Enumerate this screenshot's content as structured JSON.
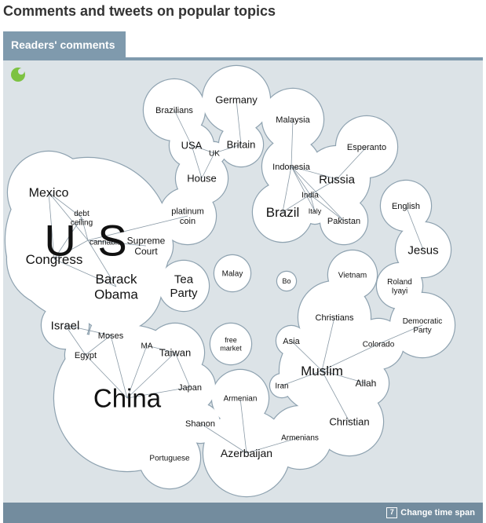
{
  "page": {
    "title": "Comments and tweets on popular topics"
  },
  "tabs": [
    {
      "label": "Readers' comments",
      "active": true
    }
  ],
  "footer": {
    "change_label": "Change time span",
    "calendar_glyph": "7"
  },
  "colors": {
    "accent": "#7f9aad",
    "panel": "#dce3e7",
    "footer": "#738c9e",
    "logo": "#7dc242",
    "bubble_stroke": "#8ea2b0"
  },
  "icons": {
    "logo": "green-dot-logo-icon",
    "calendar": "calendar-icon"
  },
  "terms": [
    {
      "id": "us",
      "label": "U S"
    },
    {
      "id": "mexico",
      "label": "Mexico"
    },
    {
      "id": "debt",
      "label": "debt ceiling"
    },
    {
      "id": "cannabis",
      "label": "cannabis"
    },
    {
      "id": "supreme",
      "label": "Supreme Court"
    },
    {
      "id": "congress",
      "label": "Congress"
    },
    {
      "id": "obama",
      "label": "Barack Obama"
    },
    {
      "id": "platinum",
      "label": "platinum coin"
    },
    {
      "id": "brazilians",
      "label": "Brazilians"
    },
    {
      "id": "germany",
      "label": "Germany"
    },
    {
      "id": "usa",
      "label": "USA"
    },
    {
      "id": "uk",
      "label": "UK"
    },
    {
      "id": "britain",
      "label": "Britain"
    },
    {
      "id": "house",
      "label": "House"
    },
    {
      "id": "malaysia",
      "label": "Malaysia"
    },
    {
      "id": "esperanto",
      "label": "Esperanto"
    },
    {
      "id": "indonesia",
      "label": "Indonesia"
    },
    {
      "id": "russia",
      "label": "Russia"
    },
    {
      "id": "india",
      "label": "India"
    },
    {
      "id": "brazil",
      "label": "Brazil"
    },
    {
      "id": "italy",
      "label": "Italy"
    },
    {
      "id": "pakistan",
      "label": "Pakistan"
    },
    {
      "id": "english",
      "label": "English"
    },
    {
      "id": "jesus",
      "label": "Jesus"
    },
    {
      "id": "roland",
      "label": "Roland Iyayi"
    },
    {
      "id": "vietnam",
      "label": "Vietnam"
    },
    {
      "id": "malay",
      "label": "Malay"
    },
    {
      "id": "bo",
      "label": "Bo"
    },
    {
      "id": "teaparty",
      "label": "Tea Party"
    },
    {
      "id": "democratic",
      "label": "Democratic Party"
    },
    {
      "id": "christians",
      "label": "Christians"
    },
    {
      "id": "colorado",
      "label": "Colorado"
    },
    {
      "id": "asia",
      "label": "Asia"
    },
    {
      "id": "muslim",
      "label": "Muslim"
    },
    {
      "id": "iran",
      "label": "Iran"
    },
    {
      "id": "allah",
      "label": "Allah"
    },
    {
      "id": "christian",
      "label": "Christian"
    },
    {
      "id": "israel",
      "label": "Israel"
    },
    {
      "id": "moses",
      "label": "Moses"
    },
    {
      "id": "egypt",
      "label": "Egypt"
    },
    {
      "id": "ma",
      "label": "MA"
    },
    {
      "id": "taiwan",
      "label": "Taiwan"
    },
    {
      "id": "china",
      "label": "China"
    },
    {
      "id": "japan",
      "label": "Japan"
    },
    {
      "id": "freemarket",
      "label": "free market"
    },
    {
      "id": "shanon",
      "label": "Shanon"
    },
    {
      "id": "portuguese",
      "label": "Portuguese"
    },
    {
      "id": "armenian",
      "label": "Armenian"
    },
    {
      "id": "armenians",
      "label": "Armenians"
    },
    {
      "id": "azerbaijan",
      "label": "Azerbaijan"
    }
  ],
  "links": [
    [
      "us",
      "mexico"
    ],
    [
      "us",
      "debt"
    ],
    [
      "us",
      "cannabis"
    ],
    [
      "us",
      "supreme"
    ],
    [
      "us",
      "congress"
    ],
    [
      "us",
      "obama"
    ],
    [
      "us",
      "platinum"
    ],
    [
      "mexico",
      "debt"
    ],
    [
      "mexico",
      "congress"
    ],
    [
      "congress",
      "obama"
    ],
    [
      "congress",
      "debt"
    ],
    [
      "usa",
      "uk"
    ],
    [
      "uk",
      "britain"
    ],
    [
      "uk",
      "house"
    ],
    [
      "usa",
      "house"
    ],
    [
      "usa",
      "brazilians"
    ],
    [
      "britain",
      "germany"
    ],
    [
      "malaysia",
      "indonesia"
    ],
    [
      "indonesia",
      "russia"
    ],
    [
      "indonesia",
      "india"
    ],
    [
      "indonesia",
      "brazil"
    ],
    [
      "indonesia",
      "italy"
    ],
    [
      "indonesia",
      "pakistan"
    ],
    [
      "russia",
      "esperanto"
    ],
    [
      "russia",
      "india"
    ],
    [
      "india",
      "brazil"
    ],
    [
      "india",
      "pakistan"
    ],
    [
      "india",
      "italy"
    ],
    [
      "english",
      "jesus"
    ],
    [
      "christians",
      "muslim"
    ],
    [
      "asia",
      "muslim"
    ],
    [
      "muslim",
      "iran"
    ],
    [
      "muslim",
      "allah"
    ],
    [
      "muslim",
      "christian"
    ],
    [
      "muslim",
      "colorado"
    ],
    [
      "colorado",
      "democratic"
    ],
    [
      "israel",
      "egypt"
    ],
    [
      "israel",
      "moses"
    ],
    [
      "moses",
      "egypt"
    ],
    [
      "egypt",
      "china"
    ],
    [
      "moses",
      "china"
    ],
    [
      "ma",
      "china"
    ],
    [
      "ma",
      "taiwan"
    ],
    [
      "taiwan",
      "china"
    ],
    [
      "china",
      "japan"
    ],
    [
      "taiwan",
      "japan"
    ],
    [
      "armenian",
      "azerbaijan"
    ],
    [
      "armenians",
      "azerbaijan"
    ],
    [
      "shanon",
      "azerbaijan"
    ]
  ]
}
